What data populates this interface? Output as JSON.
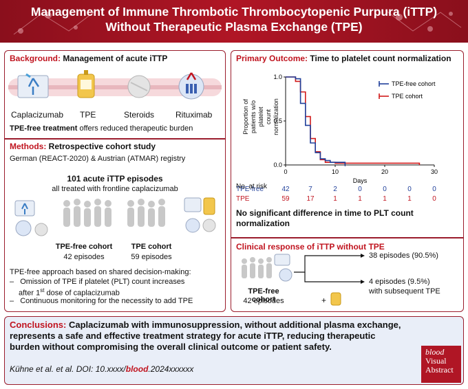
{
  "header": {
    "title_line1": "Management of Immune Thrombotic Thrombocytopenic Purpura (iTTP)",
    "title_line2": "Without Therapeutic Plasma Exchange (TPE)"
  },
  "background": {
    "heading": "Background:",
    "heading_rest": "Management of acute iTTP",
    "treatments": [
      "Caplacizumab",
      "TPE",
      "Steroids",
      "Rituximab"
    ],
    "note_bold": "TPE-free treatment",
    "note_rest": "offers reduced therapeutic burden"
  },
  "methods": {
    "heading": "Methods:",
    "heading_rest": "Retrospective cohort study",
    "registry": "German (REACT-2020) & Austrian (ATMAR) registry",
    "episodes_title": "101 acute iTTP episodes",
    "episodes_sub": "all treated with frontline caplacizumab",
    "cohort_free_label": "TPE-free cohort",
    "cohort_free_count": "42 episodes",
    "cohort_tpe_label": "TPE cohort",
    "cohort_tpe_count": "59 episodes",
    "approach": "TPE-free approach based on shared decision-making:",
    "bullet1_a": "Omission of TPE if platelet (PLT) count increases",
    "bullet1_b": "after 1",
    "bullet1_sup": "st",
    "bullet1_c": "dose of caplacizumab",
    "bullet2": "Continuous monitoring for the necessity to add TPE"
  },
  "primary": {
    "heading": "Primary Outcome:",
    "heading_rest": "Time to platelet count normalization",
    "ylabel_1": "Proportion of",
    "ylabel_2": "patients w/o platelet",
    "ylabel_3": "count normalization",
    "xlabel": "Days",
    "risk_title": "No. at risk",
    "risk_rows": [
      {
        "label": "TPE-free",
        "values": [
          "42",
          "7",
          "2",
          "0",
          "0",
          "0",
          "0"
        ]
      },
      {
        "label": "TPE",
        "values": [
          "59",
          "17",
          "1",
          "1",
          "1",
          "1",
          "0"
        ]
      }
    ],
    "conclusion": "No significant difference in time to PLT count normalization"
  },
  "chart_data": {
    "type": "line",
    "title": "",
    "xlabel": "Days",
    "ylabel": "Proportion of patients w/o platelet count normalization",
    "xlim": [
      0,
      30
    ],
    "ylim": [
      0,
      1.0
    ],
    "x_ticks": [
      "0",
      "10",
      "20",
      "30"
    ],
    "y_ticks": [
      "0.0",
      "0.5",
      "1.0"
    ],
    "legend_position": "top-right",
    "series": [
      {
        "name": "TPE-free cohort",
        "color": "#1f3f9a",
        "x": [
          0,
          2,
          3,
          4,
          5,
          6,
          7,
          8,
          9,
          12,
          12
        ],
        "y": [
          1.0,
          0.98,
          0.7,
          0.45,
          0.25,
          0.14,
          0.07,
          0.05,
          0.03,
          0.0,
          0.0
        ]
      },
      {
        "name": "TPE cohort",
        "color": "#d11a1a",
        "x": [
          0,
          2,
          3,
          4,
          5,
          6,
          7,
          8,
          10,
          27,
          27
        ],
        "y": [
          1.0,
          0.95,
          0.83,
          0.55,
          0.3,
          0.15,
          0.06,
          0.03,
          0.02,
          0.02,
          0.0
        ]
      }
    ]
  },
  "clinical": {
    "heading": "Clinical response of iTTP without TPE",
    "cohort_label": "TPE-free cohort",
    "cohort_count": "42 episodes",
    "outcome1": "38 episodes (90.5%)",
    "outcome2_a": "4 episodes (9.5%)",
    "outcome2_b": "with subsequent TPE",
    "plus": "+"
  },
  "conclusions": {
    "heading": "Conclusions:",
    "text_line1": "Caplacizumab with immunosuppression, without additional plasma exchange,",
    "text_line2": "represents a safe and effective treatment strategy for acute iTTP, reducing therapeutic",
    "text_line3": "burden without compromising the overall clinical outcome or patient safety.",
    "citation_a": "Kühne et al. et al. DOI: 10.xxxx/",
    "citation_b": "blood",
    "citation_c": ".2024xxxxxx"
  },
  "logo": {
    "line1": "blood",
    "line2": "Visual",
    "line3": "Abstract"
  },
  "colors": {
    "brand_red": "#9a1b2b",
    "accent_red": "#c0141f",
    "tpe_free_blue": "#1f3f9a",
    "conclusion_bg": "#e9eef8"
  }
}
